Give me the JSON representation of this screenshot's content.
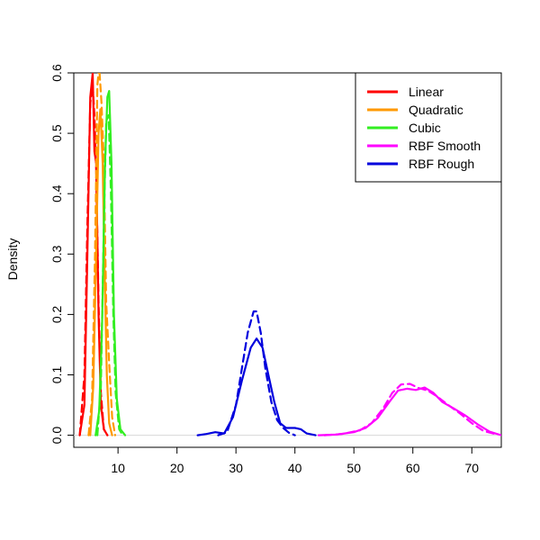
{
  "chart_data": {
    "type": "line",
    "title": "",
    "xlabel": "",
    "ylabel": "Density",
    "xlim": [
      2.5,
      75
    ],
    "ylim": [
      -0.02,
      0.6
    ],
    "x_ticks": [
      10,
      20,
      30,
      40,
      50,
      60,
      70
    ],
    "y_ticks": [
      0.0,
      0.1,
      0.2,
      0.3,
      0.4,
      0.5,
      0.6
    ],
    "x_tick_labels": [
      "10",
      "20",
      "30",
      "40",
      "50",
      "60",
      "70"
    ],
    "y_tick_labels": [
      "0.0",
      "0.1",
      "0.2",
      "0.3",
      "0.4",
      "0.5",
      "0.6"
    ],
    "grid": false,
    "legend_position": "top-right",
    "legend": [
      {
        "label": "Linear",
        "color": "#ff0000"
      },
      {
        "label": "Quadratic",
        "color": "#ff9900"
      },
      {
        "label": "Cubic",
        "color": "#33ee22"
      },
      {
        "label": "RBF Smooth",
        "color": "#ff00ff"
      },
      {
        "label": "RBF Rough",
        "color": "#0000dd"
      }
    ],
    "series": [
      {
        "group": "Linear",
        "style": "solid",
        "color": "#ff0000",
        "x": [
          3.5,
          4.3,
          4.8,
          5.3,
          5.7,
          6.0,
          6.3,
          6.7,
          7.1,
          7.6,
          8.2
        ],
        "y": [
          0.0,
          0.05,
          0.3,
          0.56,
          0.6,
          0.47,
          0.45,
          0.2,
          0.05,
          0.01,
          0.0
        ]
      },
      {
        "group": "Linear",
        "style": "dashed",
        "color": "#ff0000",
        "x": [
          3.5,
          4.3,
          4.8,
          5.3,
          5.7,
          6.0,
          6.3,
          6.7,
          7.1,
          7.6,
          8.2
        ],
        "y": [
          0.0,
          0.1,
          0.35,
          0.55,
          0.58,
          0.53,
          0.44,
          0.22,
          0.07,
          0.01,
          0.0
        ]
      },
      {
        "group": "Quadratic",
        "style": "solid",
        "color": "#ff9900",
        "x": [
          5.3,
          5.8,
          6.3,
          6.7,
          7.0,
          7.4,
          7.7,
          8.1,
          8.5,
          9.0
        ],
        "y": [
          0.0,
          0.08,
          0.3,
          0.5,
          0.54,
          0.45,
          0.28,
          0.1,
          0.02,
          0.0
        ]
      },
      {
        "group": "Quadratic",
        "style": "dashed",
        "color": "#ff9900",
        "x": [
          5.0,
          5.6,
          6.1,
          6.5,
          6.8,
          7.2,
          7.6,
          8.0,
          8.5,
          9.0,
          9.5
        ],
        "y": [
          0.0,
          0.06,
          0.3,
          0.58,
          0.61,
          0.55,
          0.45,
          0.22,
          0.12,
          0.03,
          0.0
        ]
      },
      {
        "group": "Cubic",
        "style": "solid",
        "color": "#33ee22",
        "x": [
          6.2,
          6.8,
          7.3,
          7.8,
          8.2,
          8.5,
          8.9,
          9.3,
          9.8,
          10.4,
          11.2
        ],
        "y": [
          0.0,
          0.04,
          0.18,
          0.45,
          0.56,
          0.57,
          0.45,
          0.2,
          0.06,
          0.01,
          0.0
        ]
      },
      {
        "group": "Cubic",
        "style": "dashed",
        "color": "#33ee22",
        "x": [
          6.5,
          7.1,
          7.6,
          8.0,
          8.4,
          8.8,
          9.2,
          9.6,
          10.2,
          10.8
        ],
        "y": [
          0.0,
          0.08,
          0.35,
          0.52,
          0.53,
          0.4,
          0.2,
          0.07,
          0.01,
          0.0
        ]
      },
      {
        "group": "RBF Rough",
        "style": "solid",
        "color": "#0000dd",
        "x": [
          23.5,
          25.0,
          26.5,
          28.0,
          29.5,
          31.0,
          32.5,
          33.5,
          34.5,
          35.5,
          36.5,
          37.5,
          38.5,
          40.0,
          41.0,
          42.0,
          43.5
        ],
        "y": [
          0.0,
          0.002,
          0.005,
          0.003,
          0.03,
          0.09,
          0.145,
          0.16,
          0.145,
          0.1,
          0.055,
          0.02,
          0.012,
          0.012,
          0.01,
          0.003,
          0.0
        ]
      },
      {
        "group": "RBF Rough",
        "style": "dashed",
        "color": "#0000dd",
        "x": [
          27.0,
          28.5,
          30.0,
          31.0,
          32.0,
          33.0,
          33.5,
          34.2,
          35.0,
          36.0,
          37.0,
          38.0,
          39.0,
          40.0
        ],
        "y": [
          0.0,
          0.005,
          0.05,
          0.11,
          0.17,
          0.205,
          0.205,
          0.17,
          0.11,
          0.055,
          0.025,
          0.012,
          0.004,
          0.0
        ]
      },
      {
        "group": "RBF Smooth",
        "style": "solid",
        "color": "#ff00ff",
        "x": [
          44.0,
          47.0,
          50.0,
          52.0,
          54.0,
          56.0,
          57.5,
          59.0,
          60.5,
          62.0,
          63.5,
          65.0,
          67.0,
          69.0,
          71.0,
          73.0,
          75.0
        ],
        "y": [
          0.0,
          0.001,
          0.005,
          0.012,
          0.028,
          0.055,
          0.074,
          0.077,
          0.075,
          0.079,
          0.07,
          0.055,
          0.044,
          0.032,
          0.018,
          0.006,
          0.0
        ]
      },
      {
        "group": "RBF Smooth",
        "style": "dashed",
        "color": "#ff00ff",
        "x": [
          45.0,
          48.0,
          51.0,
          53.0,
          55.0,
          56.5,
          58.0,
          59.5,
          61.0,
          62.5,
          64.0,
          66.0,
          68.0,
          70.0,
          72.0,
          74.0
        ],
        "y": [
          0.0,
          0.002,
          0.008,
          0.02,
          0.045,
          0.07,
          0.084,
          0.085,
          0.078,
          0.074,
          0.065,
          0.05,
          0.036,
          0.02,
          0.007,
          0.002
        ]
      }
    ]
  }
}
